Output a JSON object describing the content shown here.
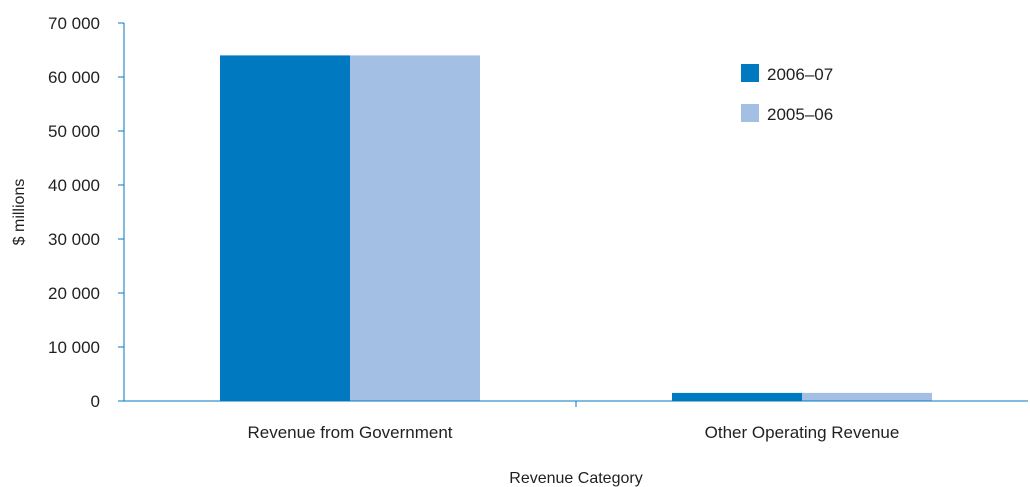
{
  "chart_data": {
    "type": "bar",
    "title": "",
    "xlabel": "Revenue Category",
    "ylabel": "$ millions",
    "categories": [
      "Revenue from Government",
      "Other Operating Revenue"
    ],
    "series": [
      {
        "name": "2006–07",
        "values": [
          64000,
          1500
        ],
        "color": "#0079c1"
      },
      {
        "name": "2005–06",
        "values": [
          64000,
          1500
        ],
        "color": "#a3bfe3"
      }
    ],
    "ylim": [
      0,
      70000
    ],
    "yticks": [
      0,
      10000,
      20000,
      30000,
      40000,
      50000,
      60000,
      70000
    ],
    "ytick_labels": [
      "0",
      "10 000",
      "20 000",
      "30 000",
      "40 000",
      "50 000",
      "60 000",
      "70 000"
    ],
    "axis_color": "#0079c1",
    "grid": false,
    "legend_position": "top-right"
  }
}
